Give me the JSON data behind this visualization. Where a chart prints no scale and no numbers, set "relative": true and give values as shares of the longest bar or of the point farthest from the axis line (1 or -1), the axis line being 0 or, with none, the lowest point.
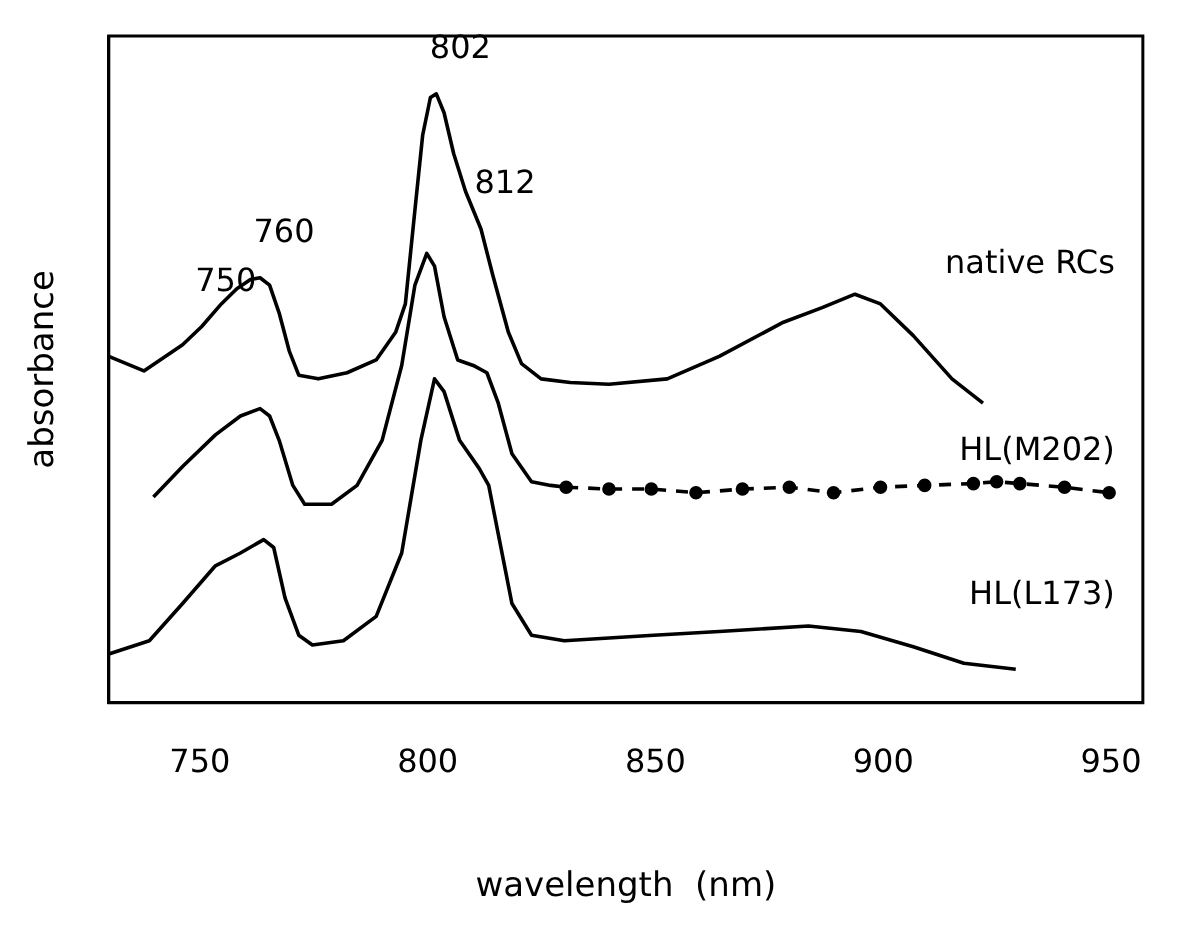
{
  "chart_data": {
    "type": "line",
    "relative": true,
    "xlabel": "wavelength  (nm)",
    "ylabel": "absorbance",
    "xlim": [
      730,
      957
    ],
    "xticks": [
      750,
      800,
      850,
      900,
      950
    ],
    "grid": false,
    "legend": false,
    "series": [
      {
        "name": "native RCs",
        "color": "#000000",
        "x": [
          730.0,
          737.7,
          746.2,
          750.4,
          754.7,
          758.1,
          761.1,
          763.2,
          765.3,
          767.4,
          769.6,
          771.7,
          776.0,
          782.3,
          788.7,
          793.0,
          795.1,
          797.2,
          798.9,
          800.6,
          801.9,
          803.6,
          805.7,
          808.3,
          811.7,
          814.3,
          817.7,
          820.6,
          824.9,
          831.3,
          839.8,
          852.6,
          864.0,
          878.1,
          886.6,
          893.8,
          899.4,
          906.6,
          915.1,
          921.9
        ],
        "values": [
          0.569,
          0.545,
          0.588,
          0.618,
          0.655,
          0.68,
          0.695,
          0.698,
          0.686,
          0.64,
          0.578,
          0.538,
          0.532,
          0.542,
          0.563,
          0.609,
          0.655,
          0.809,
          0.932,
          0.994,
          1,
          0.969,
          0.902,
          0.84,
          0.778,
          0.702,
          0.609,
          0.557,
          0.532,
          0.526,
          0.523,
          0.532,
          0.569,
          0.625,
          0.649,
          0.671,
          0.655,
          0.603,
          0.532,
          0.492
        ]
      },
      {
        "color": "#000000",
        "x": [
          739.8,
          746.2,
          753.4,
          758.9,
          763.2,
          765.3,
          767.4,
          770.4,
          773.0,
          778.9,
          784.5,
          790.0,
          794.3,
          797.2,
          799.8,
          801.5,
          803.6,
          806.6,
          810.0,
          813.0,
          815.5,
          818.5,
          822.8,
          827.0,
          830.4
        ],
        "values": [
          0.338,
          0.388,
          0.44,
          0.471,
          0.483,
          0.471,
          0.431,
          0.357,
          0.326,
          0.326,
          0.357,
          0.431,
          0.554,
          0.686,
          0.738,
          0.717,
          0.634,
          0.563,
          0.554,
          0.542,
          0.492,
          0.409,
          0.363,
          0.357,
          0.354
        ]
      },
      {
        "name": "HL(M202)",
        "color": "#000000",
        "line_style": "dashed",
        "marker": "circle",
        "x": [
          830.4,
          839.8,
          849.1,
          858.9,
          869.1,
          879.4,
          889.1,
          899.4,
          909.1,
          919.8,
          924.9,
          930.0,
          939.8,
          949.6
        ],
        "values": [
          0.354,
          0.351,
          0.351,
          0.345,
          0.351,
          0.354,
          0.345,
          0.354,
          0.357,
          0.36,
          0.363,
          0.36,
          0.354,
          0.345
        ]
      },
      {
        "name": "HL(L173)",
        "color": "#000000",
        "x": [
          730.0,
          738.9,
          746.2,
          753.4,
          758.9,
          764.0,
          766.2,
          768.7,
          771.7,
          774.7,
          781.5,
          788.7,
          794.3,
          798.5,
          801.5,
          803.6,
          807.0,
          811.3,
          813.4,
          815.5,
          818.5,
          822.8,
          830.0,
          849.6,
          864.0,
          883.6,
          895.1,
          906.6,
          917.7,
          929.1
        ],
        "values": [
          0.08,
          0.102,
          0.163,
          0.225,
          0.246,
          0.268,
          0.255,
          0.172,
          0.111,
          0.095,
          0.102,
          0.142,
          0.246,
          0.431,
          0.532,
          0.511,
          0.431,
          0.385,
          0.357,
          0.277,
          0.163,
          0.111,
          0.102,
          0.111,
          0.117,
          0.126,
          0.117,
          0.092,
          0.065,
          0.055
        ]
      }
    ],
    "annotations": [
      {
        "text": "750",
        "x": 750.4,
        "y": 0.618
      },
      {
        "text": "760",
        "x": 763.2,
        "y": 0.698
      },
      {
        "text": "802",
        "x": 801.9,
        "y": 1
      },
      {
        "text": "812",
        "x": 811.7,
        "y": 0.778
      }
    ]
  }
}
